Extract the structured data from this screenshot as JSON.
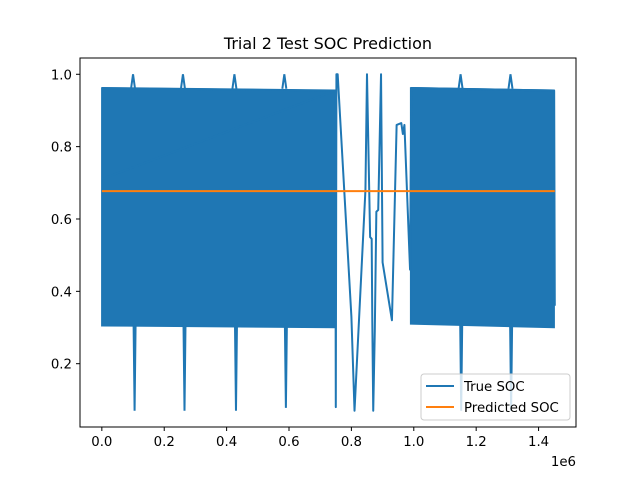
{
  "chart_data": {
    "type": "line",
    "title": "Trial 2 Test SOC Prediction",
    "xlabel": "",
    "ylabel": "",
    "x_offset_text": "1e6",
    "xlim": [
      -70000,
      1520000
    ],
    "ylim": [
      0.025,
      1.045
    ],
    "xticks": [
      0,
      200000,
      400000,
      600000,
      800000,
      1000000,
      1200000,
      1400000
    ],
    "xtick_labels": [
      "0.0",
      "0.2",
      "0.4",
      "0.6",
      "0.8",
      "1.0",
      "1.2",
      "1.4"
    ],
    "yticks": [
      0.2,
      0.4,
      0.6,
      0.8,
      1.0
    ],
    "ytick_labels": [
      "0.2",
      "0.4",
      "0.6",
      "0.8",
      "1.0"
    ],
    "grid": false,
    "legend_position": "lower-right",
    "series": [
      {
        "name": "True SOC",
        "color": "#1f77b4",
        "style": "dense oscillation",
        "envelope_segments": [
          {
            "x": [
              0,
              750000
            ],
            "upper": [
              0.962,
              0.955
            ],
            "lower": [
              0.305,
              0.3
            ]
          },
          {
            "x": [
              990000,
              1450000
            ],
            "upper": [
              0.962,
              0.955
            ],
            "lower": [
              0.31,
              0.3
            ]
          }
        ],
        "spikes_up": [
          {
            "x": 100000,
            "y": 1.0
          },
          {
            "x": 260000,
            "y": 1.0
          },
          {
            "x": 425000,
            "y": 1.0
          },
          {
            "x": 585000,
            "y": 1.0
          },
          {
            "x": 1150000,
            "y": 1.0
          },
          {
            "x": 1310000,
            "y": 1.0
          }
        ],
        "spikes_down": [
          {
            "x": 105000,
            "y": 0.07
          },
          {
            "x": 265000,
            "y": 0.07
          },
          {
            "x": 430000,
            "y": 0.07
          },
          {
            "x": 590000,
            "y": 0.078
          },
          {
            "x": 1152000,
            "y": 0.07
          },
          {
            "x": 1312000,
            "y": 0.07
          }
        ],
        "points": [
          [
            0,
            0.71
          ],
          [
            748000,
            0.955
          ],
          [
            750000,
            0.08
          ],
          [
            752000,
            1.0
          ],
          [
            756000,
            1.0
          ],
          [
            800000,
            0.33
          ],
          [
            810000,
            0.07
          ],
          [
            845000,
            0.68
          ],
          [
            850000,
            1.0
          ],
          [
            860000,
            0.55
          ],
          [
            865000,
            0.545
          ],
          [
            867000,
            0.32
          ],
          [
            870000,
            0.07
          ],
          [
            875000,
            0.29
          ],
          [
            880000,
            0.62
          ],
          [
            886000,
            0.625
          ],
          [
            895000,
            1.0
          ],
          [
            900000,
            0.48
          ],
          [
            930000,
            0.32
          ],
          [
            945000,
            0.86
          ],
          [
            960000,
            0.865
          ],
          [
            965000,
            0.835
          ],
          [
            970000,
            0.86
          ],
          [
            988000,
            0.46
          ],
          [
            992000,
            0.962
          ],
          [
            1450000,
            0.955
          ],
          [
            1452000,
            0.36
          ]
        ]
      },
      {
        "name": "Predicted SOC",
        "color": "#ff7f0e",
        "x": [
          0,
          1452000
        ],
        "y": [
          0.677,
          0.677
        ]
      }
    ]
  }
}
